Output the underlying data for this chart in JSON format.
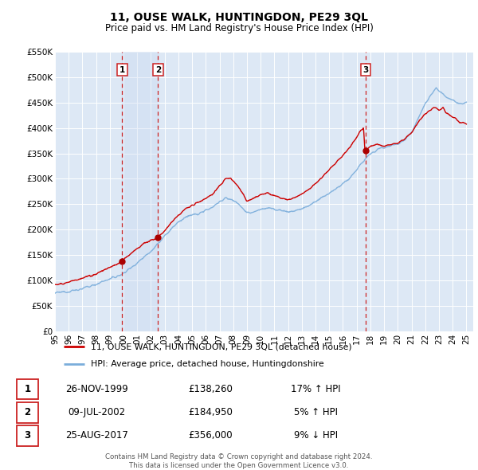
{
  "title": "11, OUSE WALK, HUNTINGDON, PE29 3QL",
  "subtitle": "Price paid vs. HM Land Registry's House Price Index (HPI)",
  "title_fontsize": 10,
  "subtitle_fontsize": 8.5,
  "background_color": "#ffffff",
  "plot_bg_color": "#dde8f5",
  "grid_color": "#ffffff",
  "xmin": 1995.0,
  "xmax": 2025.5,
  "ymin": 0,
  "ymax": 550000,
  "yticks": [
    0,
    50000,
    100000,
    150000,
    200000,
    250000,
    300000,
    350000,
    400000,
    450000,
    500000,
    550000
  ],
  "ytick_labels": [
    "£0",
    "£50K",
    "£100K",
    "£150K",
    "£200K",
    "£250K",
    "£300K",
    "£350K",
    "£400K",
    "£450K",
    "£500K",
    "£550K"
  ],
  "xticks": [
    1995,
    1996,
    1997,
    1998,
    1999,
    2000,
    2001,
    2002,
    2003,
    2004,
    2005,
    2006,
    2007,
    2008,
    2009,
    2010,
    2011,
    2012,
    2013,
    2014,
    2015,
    2016,
    2017,
    2018,
    2019,
    2020,
    2021,
    2022,
    2023,
    2024,
    2025
  ],
  "sale_color": "#cc0000",
  "hpi_color": "#7aaddb",
  "marker_color": "#aa0000",
  "vline_color": "#cc2222",
  "shade_color": "#c8d8f0",
  "transactions": [
    {
      "id": 1,
      "date": 1999.9,
      "price": 138260,
      "pct": "17%",
      "dir": "↑",
      "date_str": "26-NOV-1999",
      "price_str": "£138,260"
    },
    {
      "id": 2,
      "date": 2002.52,
      "price": 184950,
      "pct": "5%",
      "dir": "↑",
      "date_str": "09-JUL-2002",
      "price_str": "£184,950"
    },
    {
      "id": 3,
      "date": 2017.65,
      "price": 356000,
      "pct": "9%",
      "dir": "↓",
      "date_str": "25-AUG-2017",
      "price_str": "£356,000"
    }
  ],
  "legend_sale_label": "11, OUSE WALK, HUNTINGDON, PE29 3QL (detached house)",
  "legend_hpi_label": "HPI: Average price, detached house, Huntingdonshire",
  "footer1": "Contains HM Land Registry data © Crown copyright and database right 2024.",
  "footer2": "This data is licensed under the Open Government Licence v3.0."
}
